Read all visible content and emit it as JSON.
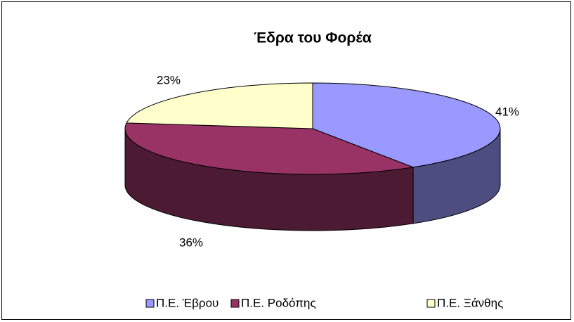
{
  "chart_data": {
    "type": "pie3d",
    "title": "Έδρα του Φορέα",
    "categories": [
      "Π.Ε. Έβρου",
      "Π.Ε. Ροδόπης",
      "Π.Ε. Ξάνθης"
    ],
    "values": [
      41,
      36,
      23
    ],
    "value_labels": [
      "41%",
      "36%",
      "23%"
    ],
    "colors": [
      "#9999ff",
      "#993366",
      "#ffffcc"
    ],
    "side_colors": [
      "#4d4d80",
      "#4d1a33",
      "#808066"
    ],
    "legend": "bottom"
  }
}
